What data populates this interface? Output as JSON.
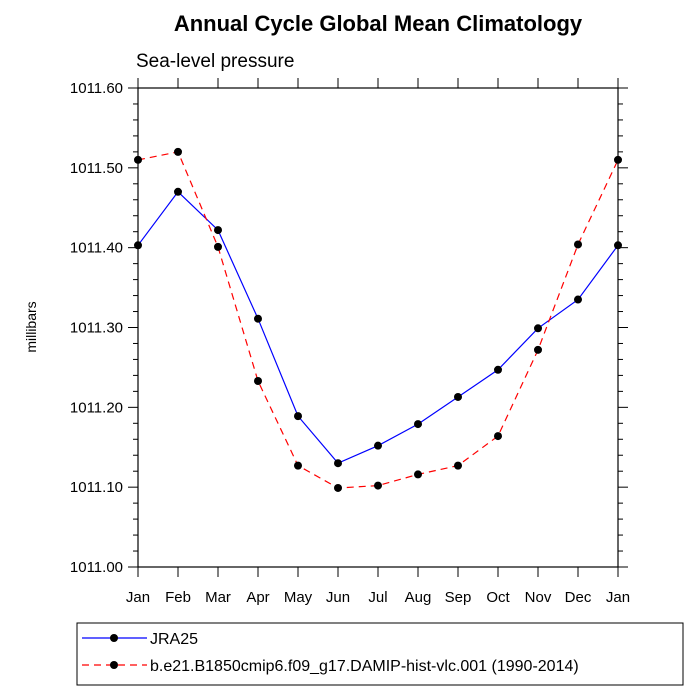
{
  "chart_data": {
    "type": "line",
    "title": "Annual Cycle Global Mean Climatology",
    "subtitle": "Sea-level pressure",
    "xlabel": "",
    "ylabel": "millibars",
    "categories": [
      "Jan",
      "Feb",
      "Mar",
      "Apr",
      "May",
      "Jun",
      "Jul",
      "Aug",
      "Sep",
      "Oct",
      "Nov",
      "Dec",
      "Jan"
    ],
    "ylim": [
      1011.0,
      1011.6
    ],
    "yticks": [
      "1011.00",
      "1011.10",
      "1011.20",
      "1011.30",
      "1011.40",
      "1011.50",
      "1011.60"
    ],
    "ytick_values": [
      1011.0,
      1011.1,
      1011.2,
      1011.3,
      1011.4,
      1011.5,
      1011.6
    ],
    "grid": false,
    "legend_position": "bottom",
    "series": [
      {
        "name": "JRA25",
        "color": "#0000ff",
        "dash": "solid",
        "values": [
          1011.403,
          1011.47,
          1011.422,
          1011.311,
          1011.189,
          1011.13,
          1011.152,
          1011.179,
          1011.213,
          1011.247,
          1011.299,
          1011.335,
          1011.403
        ]
      },
      {
        "name": "b.e21.B1850cmip6.f09_g17.DAMIP-hist-vlc.001 (1990-2014)",
        "color": "#ff0000",
        "dash": "dashed",
        "values": [
          1011.51,
          1011.52,
          1011.401,
          1011.233,
          1011.127,
          1011.099,
          1011.102,
          1011.116,
          1011.127,
          1011.164,
          1011.272,
          1011.404,
          1011.51
        ]
      }
    ]
  }
}
